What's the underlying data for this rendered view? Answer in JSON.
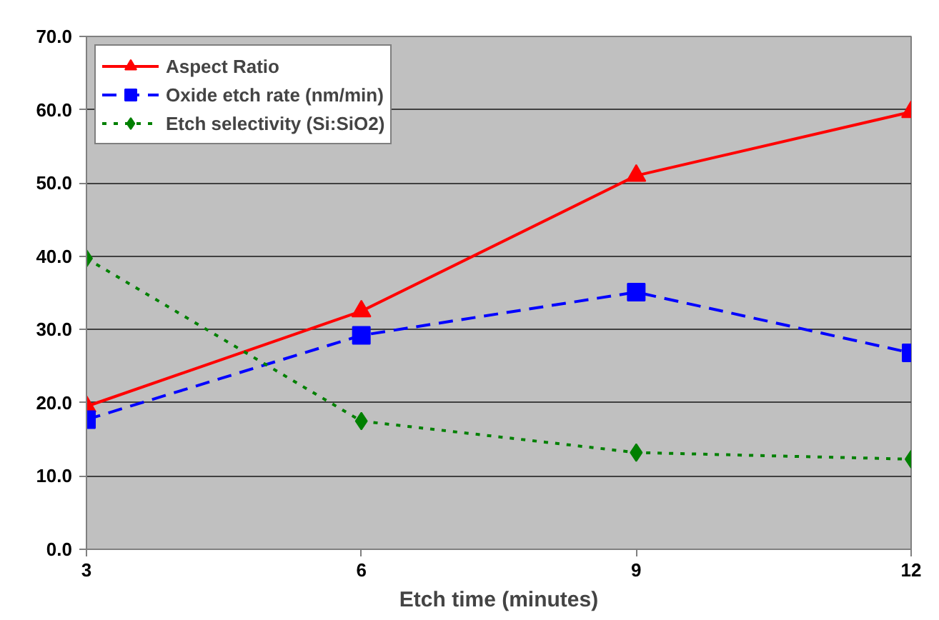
{
  "chart_data": {
    "type": "line",
    "xlabel": "Etch time (minutes)",
    "x": [
      3,
      6,
      9,
      12
    ],
    "series": [
      {
        "name": "Aspect Ratio",
        "color": "#ff0000",
        "values": [
          19.5,
          32.5,
          51.0,
          59.7
        ],
        "marker": "triangle",
        "line_style": "solid"
      },
      {
        "name": "Oxide etch rate (nm/min)",
        "color": "#0000ff",
        "values": [
          17.7,
          29.2,
          35.1,
          26.8
        ],
        "marker": "square",
        "line_style": "dashed"
      },
      {
        "name": "Etch selectivity (Si:SiO2)",
        "color": "#008000",
        "values": [
          39.7,
          17.5,
          13.2,
          12.3
        ],
        "marker": "diamond",
        "line_style": "dotted"
      }
    ],
    "xlim": [
      3,
      12
    ],
    "xticks": [
      3,
      6,
      9,
      12
    ],
    "ylim": [
      0,
      70
    ],
    "yticks": [
      {
        "value": 0,
        "label": "0.0"
      },
      {
        "value": 10,
        "label": "10.0"
      },
      {
        "value": 20,
        "label": "20.0"
      },
      {
        "value": 30,
        "label": "30.0"
      },
      {
        "value": 40,
        "label": "40.0"
      },
      {
        "value": 50,
        "label": "50.0"
      },
      {
        "value": 60,
        "label": "60.0"
      },
      {
        "value": 70,
        "label": "70.0"
      }
    ],
    "grid": "y",
    "legend": "top left"
  }
}
